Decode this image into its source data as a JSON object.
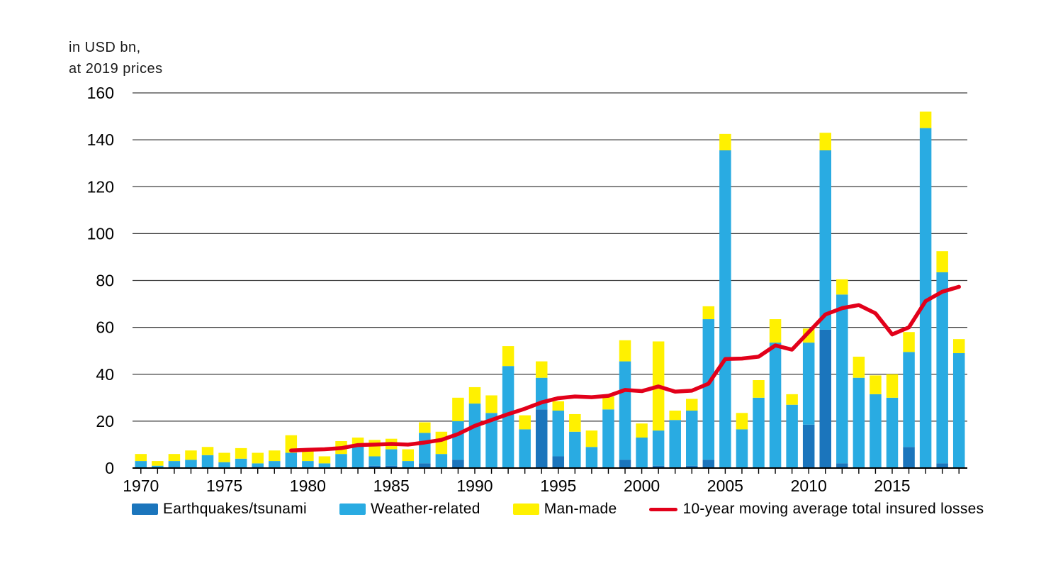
{
  "header": {
    "unit_label_line1": "in USD bn,",
    "unit_label_line2": "at 2019 prices"
  },
  "legend": [
    {
      "label": "Earthquakes/tsunami",
      "color": "#1B75BC",
      "kind": "swatch"
    },
    {
      "label": "Weather-related",
      "color": "#29ABE2",
      "kind": "swatch"
    },
    {
      "label": "Man-made",
      "color": "#FFF100",
      "kind": "swatch"
    },
    {
      "label": "10-year moving average total insured losses",
      "color": "#E2001A",
      "kind": "line"
    }
  ],
  "chart_data": {
    "type": "bar",
    "stacked": true,
    "title": "",
    "xlabel": "",
    "ylabel": "in USD bn, at 2019 prices",
    "ylim": [
      0,
      160
    ],
    "ytick_step": 20,
    "yticks": [
      0,
      20,
      40,
      60,
      80,
      100,
      120,
      140,
      160
    ],
    "grid": true,
    "legend_position": "bottom",
    "x": [
      1970,
      1971,
      1972,
      1973,
      1974,
      1975,
      1976,
      1977,
      1978,
      1979,
      1980,
      1981,
      1982,
      1983,
      1984,
      1985,
      1986,
      1987,
      1988,
      1989,
      1990,
      1991,
      1992,
      1993,
      1994,
      1995,
      1996,
      1997,
      1998,
      1999,
      2000,
      2001,
      2002,
      2003,
      2004,
      2005,
      2006,
      2007,
      2008,
      2009,
      2010,
      2011,
      2012,
      2013,
      2014,
      2015,
      2016,
      2017,
      2018,
      2019
    ],
    "xtick_labels": [
      1970,
      1975,
      1980,
      1985,
      1990,
      1995,
      2000,
      2005,
      2010,
      2015
    ],
    "series": [
      {
        "name": "Earthquakes/tsunami",
        "color": "#1B75BC",
        "values": [
          0,
          0,
          0.5,
          0,
          0,
          0,
          0,
          0.5,
          0,
          0,
          0,
          0,
          0,
          0,
          1,
          1,
          0,
          2,
          0,
          3.5,
          0,
          0,
          0,
          0,
          25,
          5,
          0,
          0,
          0,
          3.5,
          0,
          1,
          0,
          1,
          3.5,
          0,
          0,
          0,
          0,
          0,
          18.5,
          59,
          2,
          0,
          0,
          0,
          9,
          0,
          2,
          0
        ]
      },
      {
        "name": "Weather-related",
        "color": "#29ABE2",
        "values": [
          3,
          1,
          2.5,
          3.5,
          5.5,
          2.5,
          4,
          1.5,
          3,
          6.5,
          3,
          2,
          6,
          9.5,
          4,
          7,
          3,
          13,
          6,
          16.5,
          27.5,
          23.5,
          43.5,
          16.5,
          13.5,
          19.5,
          15.5,
          9,
          25,
          42,
          13,
          15,
          20.5,
          23.5,
          60,
          135.5,
          16.5,
          30,
          53.5,
          27,
          35,
          76.5,
          72,
          38.5,
          31.5,
          30,
          40.5,
          145,
          81.5,
          49
        ]
      },
      {
        "name": "Man-made",
        "color": "#FFF100",
        "values": [
          3,
          2,
          3,
          4,
          3.5,
          4,
          4.5,
          4.5,
          4.5,
          7.5,
          5,
          3,
          5.5,
          3.5,
          7,
          4.5,
          5,
          4.5,
          9.5,
          10,
          7,
          7.5,
          8.5,
          6,
          7,
          4,
          7.5,
          7,
          5.5,
          9,
          6,
          38,
          4,
          5,
          5.5,
          7,
          7,
          7.5,
          10,
          4.5,
          6,
          7.5,
          6.5,
          9,
          8,
          10,
          8.5,
          7,
          9,
          6
        ]
      }
    ],
    "line_series": {
      "name": "10-year moving average total insured losses",
      "color": "#E2001A",
      "x_start": 1979,
      "values": [
        7.5,
        7.8,
        8.0,
        8.5,
        9.8,
        10.0,
        10.3,
        10.0,
        10.9,
        12.0,
        14.5,
        18.0,
        20.5,
        23.0,
        25.3,
        28.0,
        29.8,
        30.5,
        30.2,
        30.8,
        33.3,
        32.8,
        34.8,
        32.6,
        33.0,
        36.0,
        46.5,
        46.7,
        47.5,
        52.3,
        50.5,
        58.0,
        65.5,
        68.2,
        69.5,
        66.0,
        57.0,
        60.0,
        71.2,
        75.2,
        77.3
      ]
    }
  }
}
